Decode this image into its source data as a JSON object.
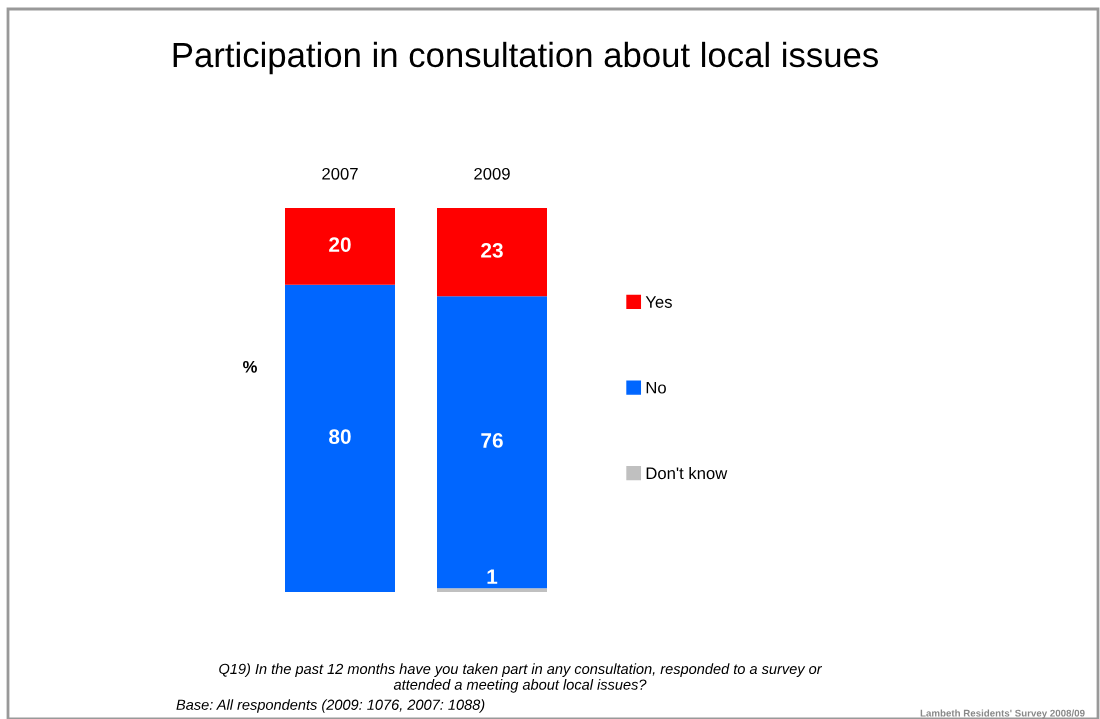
{
  "chart_data": {
    "type": "bar",
    "stacked": true,
    "title": "Participation in consultation about local issues",
    "ylabel": "%",
    "categories": [
      "2007",
      "2009"
    ],
    "series": [
      {
        "name": "Don't know",
        "color": "#c0c0c0",
        "values": [
          0,
          1
        ],
        "value_labels": [
          null,
          "1"
        ]
      },
      {
        "name": "No",
        "color": "#0066ff",
        "values": [
          80,
          76
        ],
        "value_labels": [
          "80",
          "76"
        ]
      },
      {
        "name": "Yes",
        "color": "#ff0000",
        "values": [
          20,
          23
        ],
        "value_labels": [
          "20",
          "23"
        ]
      }
    ],
    "legend": "right",
    "annotations": [
      "Q19) In the past 12 months have you taken part in any consultation, responded to a survey or\nattended a meeting about local issues?",
      "Base: All respondents (2009: 1076, 2007: 1088)",
      "Lambeth Residents' Survey 2008/09"
    ]
  }
}
